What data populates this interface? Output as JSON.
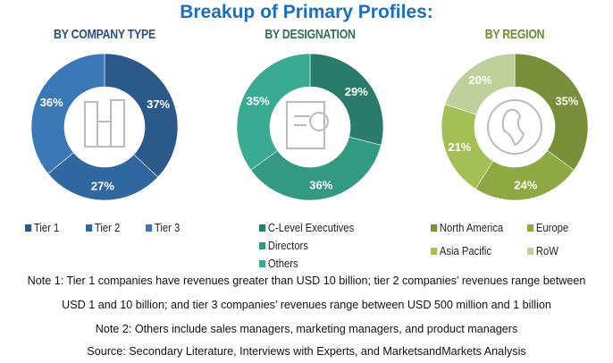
{
  "title": "Breakup of Primary Profiles:",
  "chart_data": [
    {
      "type": "pie",
      "title": "BY COMPANY TYPE",
      "title_color": "#2b4f7a",
      "icon": "buildings-icon",
      "categories": [
        "Tier 1",
        "Tier 2",
        "Tier 3"
      ],
      "values": [
        37,
        27,
        36
      ],
      "labels": [
        "37%",
        "27%",
        "36%"
      ],
      "colors": [
        "#2b5a8a",
        "#2f67a0",
        "#3a78b8"
      ]
    },
    {
      "type": "pie",
      "title": "BY DESIGNATION",
      "title_color": "#2e6f5a",
      "icon": "certificate-icon",
      "categories": [
        "C-Level Executives",
        "Directors",
        "Others"
      ],
      "values": [
        29,
        36,
        35
      ],
      "labels": [
        "29%",
        "36%",
        "35%"
      ],
      "colors": [
        "#2a7c6a",
        "#339a82",
        "#3aab93"
      ]
    },
    {
      "type": "pie",
      "title": "BY REGION",
      "title_color": "#6f8a2e",
      "icon": "globe-icon",
      "categories": [
        "North America",
        "Europe",
        "Asia Pacific",
        "RoW"
      ],
      "values": [
        35,
        24,
        21,
        20
      ],
      "labels": [
        "35%",
        "24%",
        "21%",
        "20%"
      ],
      "colors": [
        "#7a8f3a",
        "#8ea842",
        "#a3bf55",
        "#c0d09a"
      ]
    }
  ],
  "notes": [
    "Note 1: Tier 1 companies have revenues greater than USD 10 billion; tier 2 companies’ revenues range between",
    "USD 1 and 10 billion; and tier 3 companies’ revenues range between USD 500 million and 1 billion",
    "Note 2: Others include sales managers, marketing managers, and product managers",
    "Source: Secondary Literature, Interviews with Experts, and MarketsandMarkets Analysis"
  ]
}
